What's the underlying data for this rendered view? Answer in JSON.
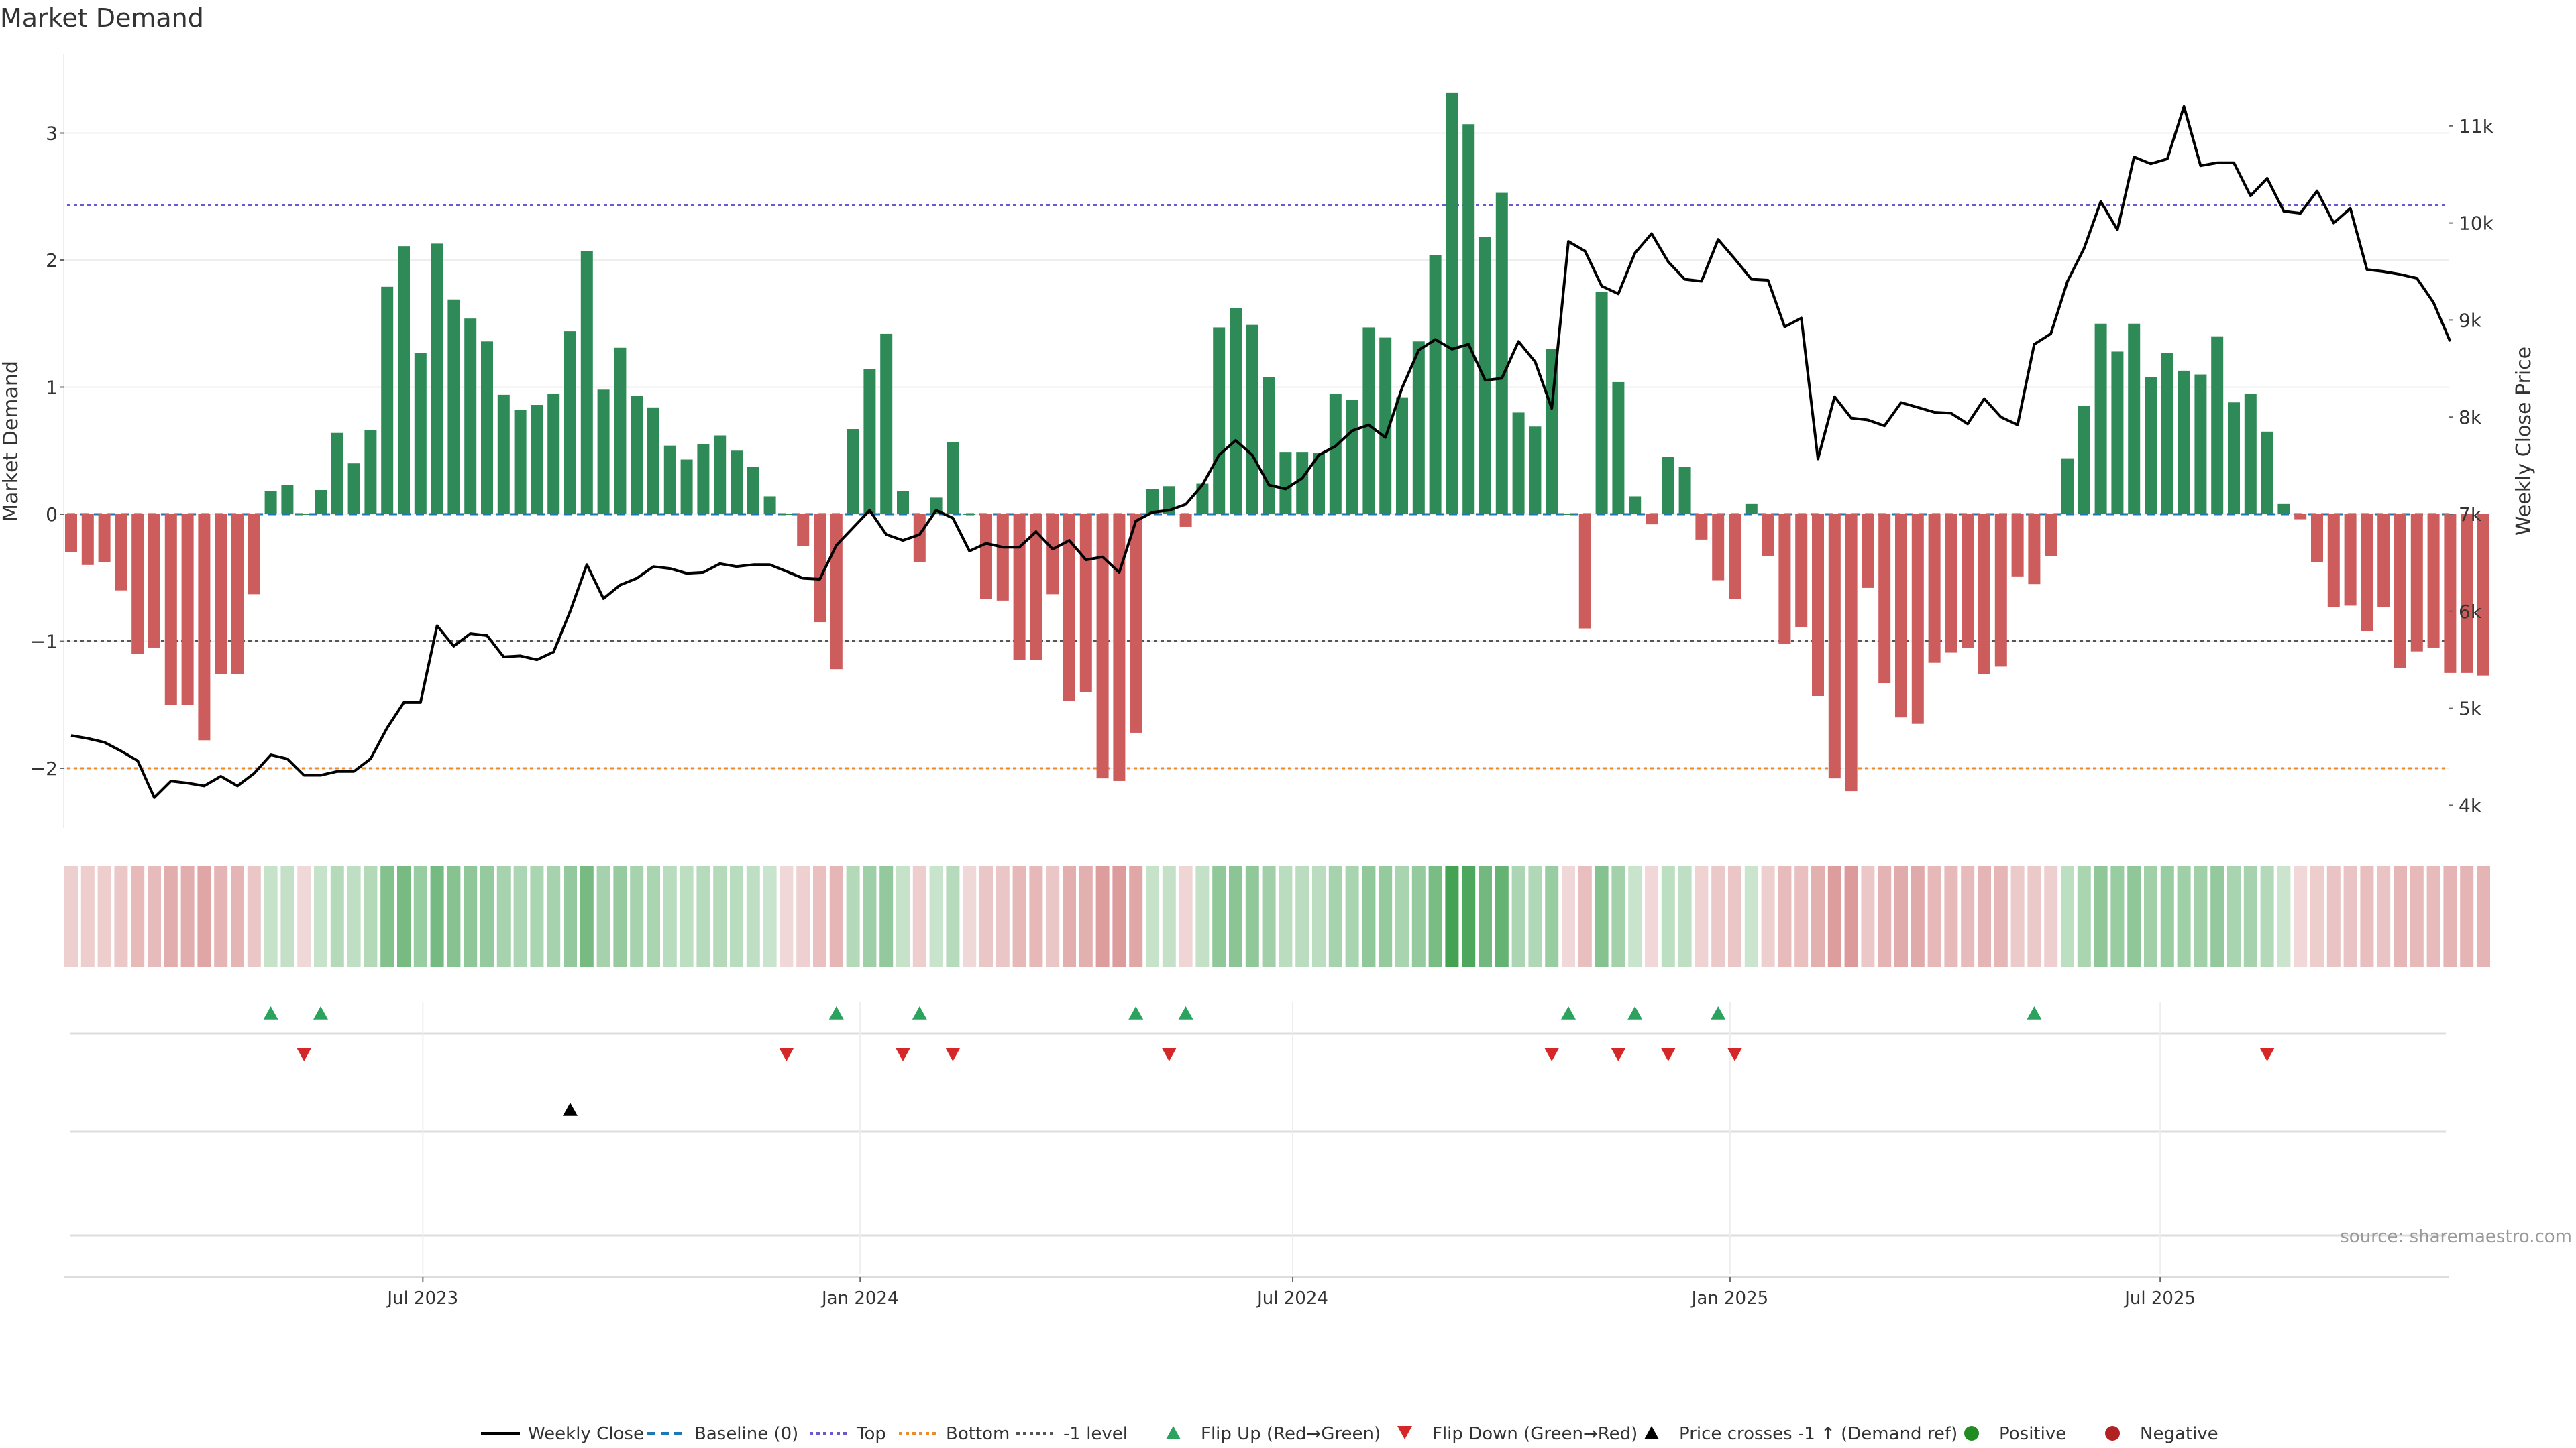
{
  "chart_data": {
    "type": "bar",
    "title": "Market Demand",
    "ylabel": "Market Demand",
    "y2label": "Weekly Close Price",
    "ylim": [
      -2.5,
      3.4
    ],
    "y2lim": [
      3800,
      11500
    ],
    "yticks": [
      "−2",
      "−1",
      "0",
      "1",
      "2",
      "3"
    ],
    "ytick_values": [
      -2,
      -1,
      0,
      1,
      2,
      3
    ],
    "y2ticks": [
      "4k",
      "5k",
      "6k",
      "7k",
      "8k",
      "9k",
      "10k",
      "11k"
    ],
    "y2tick_values": [
      4000,
      5000,
      6000,
      7000,
      8000,
      9000,
      10000,
      11000
    ],
    "x_start": "2023-02-03",
    "x_step_days": 7,
    "xticks": [
      "Jul 2023",
      "Jan 2024",
      "Jul 2024",
      "Jan 2025",
      "Jul 2025"
    ],
    "xtick_dates": [
      "2023-07-01",
      "2024-01-01",
      "2024-07-01",
      "2025-01-01",
      "2025-07-01"
    ],
    "reference_lines": {
      "top": 2.43,
      "bottom": -2.0,
      "minus_one": -1.0,
      "baseline": 0
    },
    "demand": [
      -0.3,
      -0.4,
      -0.38,
      -0.6,
      -1.1,
      -1.05,
      -1.5,
      -1.5,
      -1.78,
      -1.26,
      -1.26,
      -0.63,
      0.18,
      0.23,
      0.0,
      0.19,
      0.64,
      0.4,
      0.66,
      1.79,
      2.11,
      1.27,
      2.13,
      1.69,
      1.54,
      1.36,
      0.94,
      0.82,
      0.86,
      0.95,
      1.44,
      2.07,
      0.98,
      1.31,
      0.93,
      0.84,
      0.54,
      0.43,
      0.55,
      0.62,
      0.5,
      0.37,
      0.14,
      0.0,
      -0.25,
      -0.85,
      -1.22,
      0.67,
      1.14,
      1.42,
      0.18,
      -0.38,
      0.13,
      0.57,
      0.0,
      -0.67,
      -0.68,
      -1.15,
      -1.15,
      -0.63,
      -1.47,
      -1.4,
      -2.08,
      -2.1,
      -1.72,
      0.2,
      0.22,
      -0.1,
      0.24,
      1.47,
      1.62,
      1.49,
      1.08,
      0.49,
      0.49,
      0.48,
      0.95,
      0.9,
      1.47,
      1.39,
      0.92,
      1.36,
      2.04,
      3.32,
      3.07,
      2.18,
      2.53,
      0.8,
      0.69,
      1.3,
      0.0,
      -0.9,
      1.75,
      1.04,
      0.14,
      -0.08,
      0.45,
      0.37,
      -0.2,
      -0.52,
      -0.67,
      0.08,
      -0.33,
      -1.02,
      -0.89,
      -1.43,
      -2.08,
      -2.18,
      -0.58,
      -1.33,
      -1.6,
      -1.65,
      -1.17,
      -1.09,
      -1.05,
      -1.26,
      -1.2,
      -0.49,
      -0.55,
      -0.33,
      0.44,
      0.85,
      1.5,
      1.28,
      1.5,
      1.08,
      1.27,
      1.13,
      1.1,
      1.4,
      0.88,
      0.95,
      0.65,
      0.08,
      -0.04,
      -0.38,
      -0.73,
      -0.72,
      -0.92,
      -0.73,
      -1.21,
      -1.08,
      -1.05,
      -1.25,
      -1.25,
      -1.27
    ],
    "weekly_close": [
      4720,
      4690,
      4650,
      4560,
      4460,
      4080,
      4250,
      4230,
      4200,
      4300,
      4200,
      4330,
      4520,
      4480,
      4310,
      4310,
      4350,
      4350,
      4480,
      4800,
      5060,
      5060,
      5850,
      5640,
      5770,
      5750,
      5530,
      5540,
      5500,
      5580,
      6000,
      6480,
      6130,
      6270,
      6340,
      6460,
      6440,
      6390,
      6400,
      6490,
      6460,
      6480,
      6480,
      6410,
      6340,
      6330,
      6680,
      6860,
      7040,
      6790,
      6730,
      6790,
      7040,
      6960,
      6620,
      6700,
      6660,
      6660,
      6820,
      6640,
      6730,
      6530,
      6560,
      6400,
      6930,
      7020,
      7040,
      7100,
      7300,
      7610,
      7760,
      7610,
      7300,
      7260,
      7370,
      7610,
      7700,
      7860,
      7920,
      7790,
      8300,
      8690,
      8800,
      8700,
      8750,
      8380,
      8400,
      8780,
      8570,
      8090,
      9810,
      9710,
      9350,
      9270,
      9690,
      9890,
      9600,
      9420,
      9400,
      9830,
      9630,
      9420,
      9410,
      8930,
      9020,
      7570,
      8210,
      7990,
      7970,
      7910,
      8150,
      8100,
      8050,
      8040,
      7930,
      8190,
      8000,
      7920,
      8750,
      8860,
      9400,
      9740,
      10220,
      9930,
      10680,
      10610,
      10660,
      11200,
      10590,
      10620,
      10620,
      10280,
      10460,
      10120,
      10100,
      10330,
      10000,
      10150,
      9520,
      9500,
      9470,
      9430,
      9180,
      8780
    ],
    "flip_up": [
      12,
      15,
      46,
      51,
      64,
      67,
      90,
      94,
      99,
      118
    ],
    "flip_down": [
      14,
      43,
      50,
      53,
      66,
      89,
      93,
      96,
      100,
      132
    ],
    "price_cross": [
      30
    ],
    "legend": [
      {
        "name": "Weekly Close",
        "marker": "line",
        "color": "#000000"
      },
      {
        "name": "Baseline (0)",
        "marker": "dash",
        "color": "#1f77b4"
      },
      {
        "name": "Top",
        "marker": "dot",
        "color": "#6a5acd"
      },
      {
        "name": "Bottom",
        "marker": "dot",
        "color": "#ee8a2a"
      },
      {
        "name": "-1 level",
        "marker": "dot",
        "color": "#555555"
      },
      {
        "name": "Flip Up (Red→Green)",
        "marker": "triangle-up",
        "color": "#2ca25f"
      },
      {
        "name": "Flip Down (Green→Red)",
        "marker": "triangle-down",
        "color": "#d62728"
      },
      {
        "name": "Price crosses -1 ↑ (Demand ref)",
        "marker": "triangle-up",
        "color": "#000000"
      },
      {
        "name": "Positive",
        "marker": "circle",
        "color": "#228b22"
      },
      {
        "name": "Negative",
        "marker": "circle",
        "color": "#b22222"
      }
    ],
    "legend_placement": "bottom",
    "grid": true,
    "source": "source: sharemaestro.com",
    "colors": {
      "positive": "#2e8b57",
      "negative": "#cd5c5c",
      "price": "#000000",
      "heat_pos": "#3a9d4a",
      "heat_neg": "#c96464"
    }
  }
}
